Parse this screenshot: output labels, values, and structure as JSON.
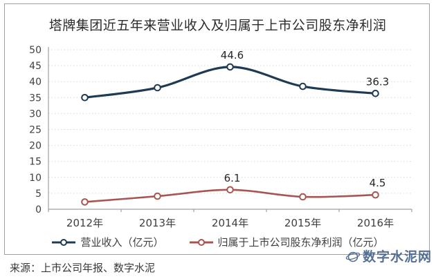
{
  "title": "塔牌集团近五年来营业收入及归属于上市公司股东净利润",
  "footer": {
    "source_text": "来源：上市公司年报、数字水泥",
    "watermark": "数字水泥网"
  },
  "colors": {
    "revenue_line": "#1f3a54",
    "profit_line": "#a85552",
    "gridline": "#d9d9d9",
    "axis": "#a0a0a0",
    "tick_text": "#3f3f3f",
    "label_text": "#262626"
  },
  "chart_data": {
    "type": "line",
    "title": "塔牌集团近五年来营业收入及归属于上市公司股东净利润",
    "categories": [
      "2012年",
      "2013年",
      "2014年",
      "2015年",
      "2016年"
    ],
    "series": [
      {
        "name": "营业收入（亿元）",
        "color": "#1f3a54",
        "line_width": 3.2,
        "values": [
          35.0,
          38.1,
          44.6,
          38.5,
          36.3
        ],
        "point_labels": [
          "",
          "",
          "44.6",
          "",
          "36.3"
        ]
      },
      {
        "name": "归属于上市公司股东净利润（亿元）",
        "color": "#a85552",
        "line_width": 2.6,
        "values": [
          2.3,
          4.1,
          6.1,
          3.9,
          4.5
        ],
        "point_labels": [
          "",
          "",
          "6.1",
          "",
          "4.5"
        ]
      }
    ],
    "xlabel": "",
    "ylabel": "",
    "ylim": [
      0,
      50
    ],
    "y_step": 5,
    "grid": "horizontal-dotted",
    "legend_position": "bottom",
    "marker": "open-circle"
  }
}
